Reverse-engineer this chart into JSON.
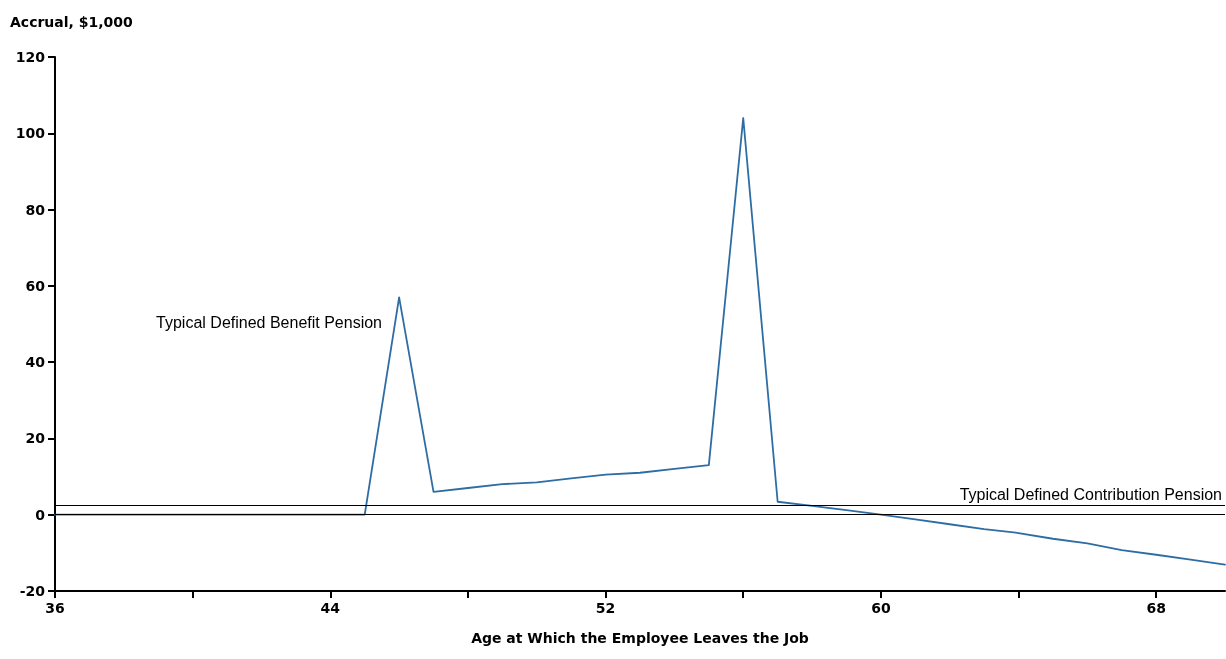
{
  "chart_data": {
    "type": "line",
    "xlabel": "Age at Which the Employee Leaves the Job",
    "ylabel": "Accrual, $1,000",
    "x": [
      36,
      45,
      46,
      47,
      48,
      49,
      50,
      51,
      52,
      53,
      54,
      55,
      56,
      57,
      58,
      59,
      60,
      61,
      62,
      63,
      64,
      65,
      66,
      67,
      68,
      69,
      70
    ],
    "series": [
      {
        "color": "#2e6da4",
        "values": [
          0,
          0,
          57,
          6,
          7,
          8,
          8.5,
          9.5,
          10.5,
          11,
          12,
          13,
          104,
          3.4,
          2.3,
          1.2,
          0,
          -1.2,
          -2.5,
          -3.8,
          -4.8,
          -6.3,
          -7.5,
          -9.3,
          -10.5,
          -11.8,
          -13.1
        ]
      }
    ],
    "xlim": [
      36,
      70
    ],
    "xticks": [
      36,
      {
        "value": 40,
        "label": null
      },
      44,
      {
        "value": 48,
        "label": null
      },
      52,
      {
        "value": 56,
        "label": null
      },
      60,
      {
        "value": 64,
        "label": null
      },
      68
    ],
    "ylim": [
      -20,
      120
    ],
    "yticks": [
      -20,
      0,
      20,
      40,
      60,
      80,
      100,
      120
    ],
    "grid": false,
    "marker": "none",
    "line_style": "solid",
    "ref_lines": [
      {
        "axis": "y",
        "value": 0,
        "label": null,
        "color": "#000000"
      },
      {
        "axis": "y",
        "value": 2.4,
        "label": "Typical Defined Contribution Pension",
        "color": "#000000"
      }
    ],
    "annotations": [
      "Typical Defined Benefit Pension"
    ]
  }
}
